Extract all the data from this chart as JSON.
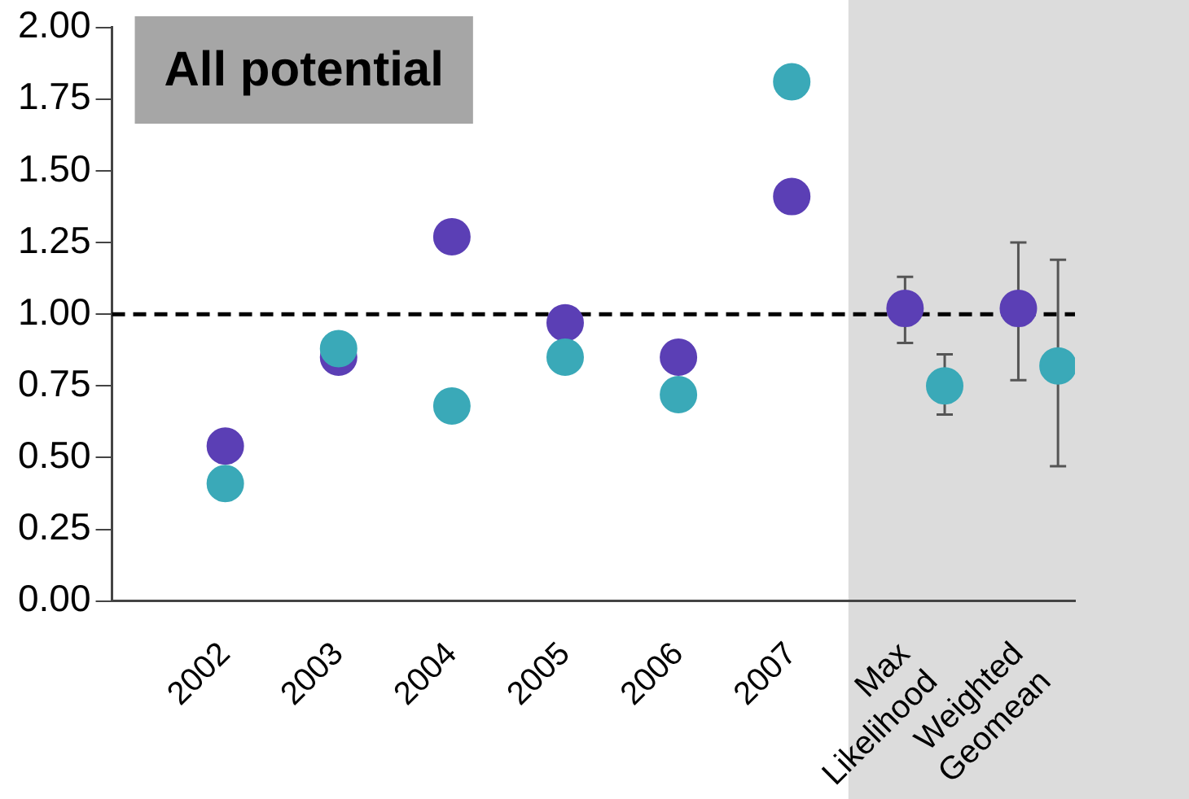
{
  "chart_data": {
    "type": "scatter",
    "title": "All potential",
    "categories": [
      "2002",
      "2003",
      "2004",
      "2005",
      "2006",
      "2007",
      "Max Likelihood",
      "Weighted Geomean"
    ],
    "series": [
      {
        "color": "#5b3fb5",
        "values": [
          0.54,
          0.85,
          1.27,
          0.97,
          0.85,
          1.41,
          1.02,
          1.02
        ],
        "errors": [
          null,
          null,
          null,
          null,
          null,
          null,
          [
            0.9,
            1.13
          ],
          [
            0.77,
            1.25
          ]
        ]
      },
      {
        "color": "#3aa9b8",
        "values": [
          0.41,
          0.88,
          0.68,
          0.85,
          0.72,
          1.81,
          0.75,
          0.82
        ],
        "errors": [
          null,
          null,
          null,
          null,
          null,
          null,
          [
            0.65,
            0.86
          ],
          [
            0.47,
            1.19
          ]
        ]
      }
    ],
    "ylim": [
      0,
      2
    ],
    "yticks": [
      {
        "value": 0,
        "label": "0.00"
      },
      {
        "value": 0.25,
        "label": "0.25"
      },
      {
        "value": 0.5,
        "label": "0.50"
      },
      {
        "value": 0.75,
        "label": "0.75"
      },
      {
        "value": 1,
        "label": "1.00"
      },
      {
        "value": 1.25,
        "label": "1.25"
      },
      {
        "value": 1.5,
        "label": "1.50"
      },
      {
        "value": 1.75,
        "label": "1.75"
      },
      {
        "value": 2,
        "label": "2.00"
      }
    ],
    "ref_lines": [
      {
        "axis": "y",
        "value": 1,
        "color": "#000000",
        "line_style": "dashed"
      }
    ],
    "bands": [
      {
        "axis": "x",
        "from": "Max Likelihood",
        "to": "Weighted Geomean",
        "color": "#dcdcdc"
      }
    ],
    "marker": "circle",
    "grid": false,
    "legend": false
  }
}
